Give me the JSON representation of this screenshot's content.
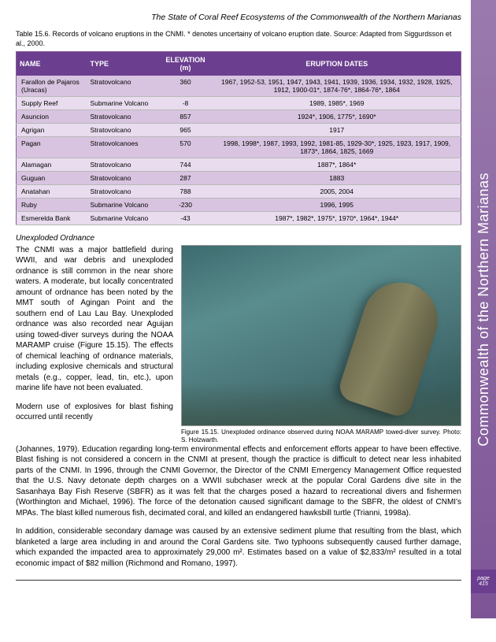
{
  "header": {
    "title": "The State of Coral Reef Ecosystems of the Commonwealth of the Northern Marianas"
  },
  "table": {
    "caption": "Table 15.6.  Records of volcano eruptions in the CNMI.  * denotes uncertainy of volcano eruption date.  Source: Adapted from Siggurdsson et al., 2000.",
    "columns": [
      "NAME",
      "TYPE",
      "ELEVATION (m)",
      "ERUPTION DATES"
    ],
    "rows": [
      [
        "Farallon de Pajaros (Uracas)",
        "Stratovolcano",
        "360",
        "1967, 1952-53, 1951, 1947, 1943, 1941, 1939, 1936, 1934, 1932, 1928, 1925, 1912, 1900-01*, 1874-76*, 1864-76*, 1864"
      ],
      [
        "Supply Reef",
        "Submarine Volcano",
        "-8",
        "1989, 1985*, 1969"
      ],
      [
        "Asuncion",
        "Stratovolcano",
        "857",
        "1924*, 1906, 1775*, 1690*"
      ],
      [
        "Agrigan",
        "Stratovolcano",
        "965",
        "1917"
      ],
      [
        "Pagan",
        "Stratovolcanoes",
        "570",
        "1998, 1998*, 1987, 1993, 1992, 1981-85, 1929-30*, 1925, 1923, 1917, 1909, 1873*, 1864, 1825, 1669"
      ],
      [
        "Alamagan",
        "Stratovolcano",
        "744",
        "1887*, 1864*"
      ],
      [
        "Guguan",
        "Stratovolcano",
        "287",
        "1883"
      ],
      [
        "Anatahan",
        "Stratovolcano",
        "788",
        "2005, 2004"
      ],
      [
        "Ruby",
        "Submarine Volcano",
        "-230",
        "1996, 1995"
      ],
      [
        "Esmerelda Bank",
        "Submarine Volcano",
        "-43",
        "1987*, 1982*, 1975*, 1970*, 1964*, 1944*"
      ]
    ]
  },
  "section": {
    "subhead": "Unexploded Ordnance",
    "left_text": "The CNMI was a major battlefield during WWII, and war debris and unexploded ordnance is still common in the near shore waters.  A moderate, but locally concentrated amount of ordnance has been noted by the MMT south of Agingan Point and the southern end of Lau Lau Bay.  Unexploded ordnance was also recorded near Aguijan using towed-diver surveys during the NOAA MARAMP cruise (Figure 15.15). The effects of chemical leaching of ordnance materials, including explosive chemicals and structural metals (e.g., copper, lead, tin, etc.), upon marine life have not been evaluated.",
    "left_text2": "Modern use of explosives for blast fishing occurred until recently",
    "fig_caption": "Figure 15.15.  Unexploded ordinance observed during NOAA MARAMP towed-diver survey.  Photo: S. Holzwarth.",
    "para2": "(Johannes, 1979).  Education regarding long-term environmental effects and enforcement efforts appear to have been effective.  Blast fishing is not considered a concern in the CNMI at present, though the practice is difficult to detect near less inhabited parts of the CNMI.  In 1996, through the CNMI Governor, the Director of the CNMI Emergency Management Office requested that the U.S. Navy detonate depth charges on a WWII subchaser wreck at the popular Coral Gardens dive site in the Sasanhaya Bay Fish Reserve (SBFR) as it was felt that the charges posed a hazard to recreational divers and fishermen (Worthington and Michael, 1996). The force of the detonation caused significant damage to the SBFR, the oldest of CNMI's MPAs.  The blast killed numerous fish, decimated coral, and killed an endangered hawksbill turtle (Trianni, 1998a).",
    "para3": "In addition, considerable secondary damage was caused by an extensive sediment plume that resulting from the blast, which blanketed a large area including in and around the Coral Gardens site.  Two typhoons subsequently caused further damage, which expanded the impacted area to approximately 29,000 m². Estimates based on a value of $2,833/m² resulted in a total economic impact of $82 million (Richmond and Romano, 1997)."
  },
  "sidebar": {
    "label": "Commonwealth of the Northern Marianas"
  },
  "footer": {
    "page_label": "page",
    "page_number": "415"
  }
}
